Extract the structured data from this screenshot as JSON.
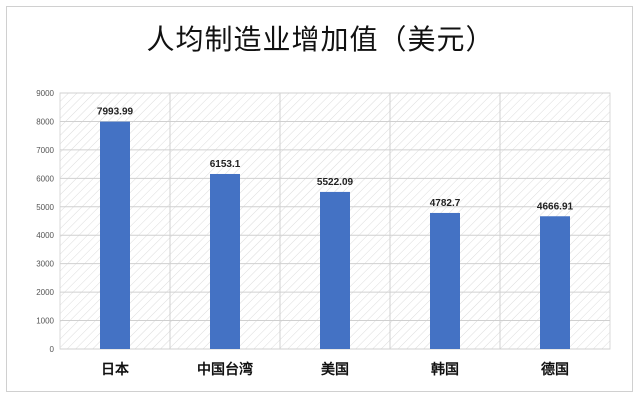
{
  "chart_data": {
    "type": "bar",
    "title": "人均制造业增加值（美元）",
    "categories": [
      "日本",
      "中国台湾",
      "美国",
      "韩国",
      "德国"
    ],
    "values": [
      7993.99,
      6153.1,
      5522.09,
      4782.7,
      4666.91
    ],
    "data_labels": [
      "7993.99",
      "6153.1",
      "5522.09",
      "4782.7",
      "4666.91"
    ],
    "yticks": [
      "0",
      "1000",
      "2000",
      "3000",
      "4000",
      "5000",
      "6000",
      "7000",
      "8000",
      "9000"
    ],
    "ylim": [
      0,
      9000
    ],
    "xlabel": "",
    "ylabel": "",
    "grid": true,
    "legend": "none",
    "bar_color": "#4472C4"
  }
}
